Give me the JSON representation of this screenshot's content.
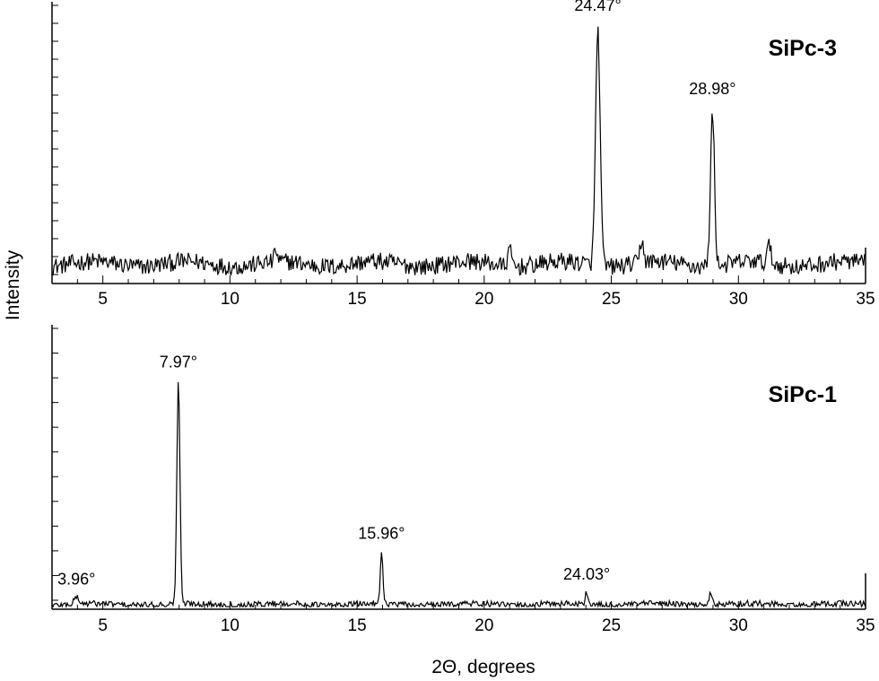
{
  "chart_data": {
    "type": "line",
    "ylabel": "Intensity",
    "xlabel": "2Θ, degrees",
    "xlim": [
      3,
      35
    ],
    "x_ticks": [
      5,
      10,
      15,
      20,
      25,
      30,
      35
    ],
    "shared_y_axis_label": true,
    "panels": [
      {
        "title": "SiPc-3",
        "ylim": [
          0,
          100
        ],
        "baseline": 7,
        "noise": 3.5,
        "peaks": [
          {
            "x": 24.47,
            "label": "24.47°",
            "height": 93,
            "width": 0.09
          },
          {
            "x": 28.98,
            "label": "28.98°",
            "height": 60,
            "width": 0.08
          },
          {
            "x": 26.2,
            "label": "",
            "height": 9,
            "width": 0.07
          },
          {
            "x": 31.2,
            "label": "",
            "height": 7,
            "width": 0.07
          },
          {
            "x": 11.8,
            "label": "",
            "height": 5,
            "width": 0.05
          },
          {
            "x": 21.0,
            "label": "",
            "height": 6,
            "width": 0.08
          }
        ]
      },
      {
        "title": "SiPc-1",
        "ylim": [
          0,
          100
        ],
        "baseline": 1.2,
        "noise": 1.2,
        "peaks": [
          {
            "x": 3.96,
            "label": "3.96°",
            "height": 3,
            "width": 0.08
          },
          {
            "x": 7.97,
            "label": "7.97°",
            "height": 88,
            "width": 0.06
          },
          {
            "x": 15.96,
            "label": "15.96°",
            "height": 21,
            "width": 0.05
          },
          {
            "x": 24.03,
            "label": "24.03°",
            "height": 5,
            "width": 0.05
          },
          {
            "x": 28.9,
            "label": "",
            "height": 4,
            "width": 0.08
          }
        ]
      }
    ]
  }
}
